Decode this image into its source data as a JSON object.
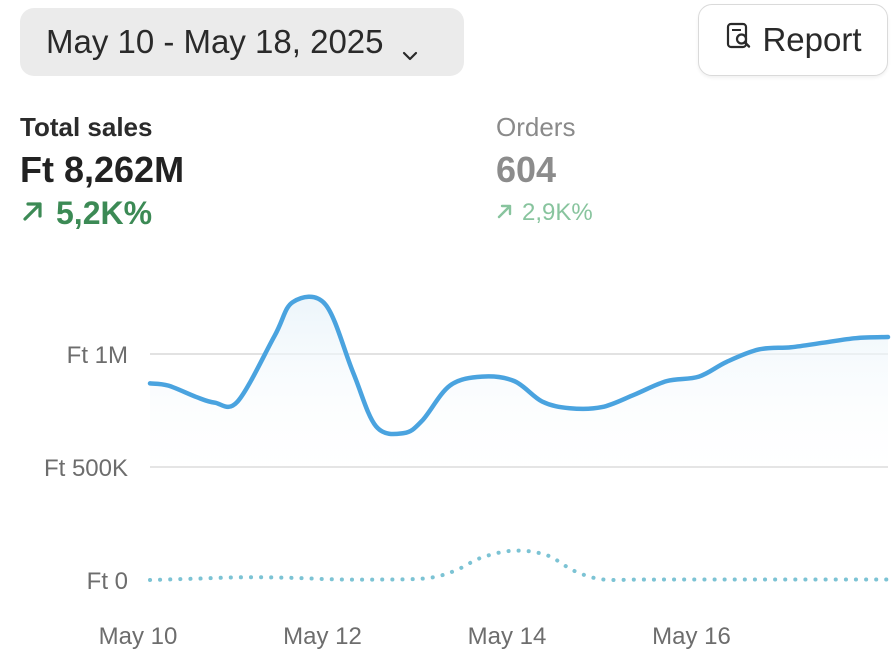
{
  "date_range": {
    "label": "May 10 - May 18, 2025",
    "icon": "chevron-down-icon"
  },
  "report_button": {
    "label": "Report",
    "icon": "report-search-icon"
  },
  "metrics": {
    "total_sales": {
      "label": "Total sales",
      "value": "Ft 8,262M",
      "change": "5,2K%",
      "change_color": "#3c8a55"
    },
    "orders": {
      "label": "Orders",
      "value": "604",
      "change": "2,9K%",
      "change_color": "#88c49e"
    }
  },
  "chart_data": {
    "type": "line",
    "y_tick_labels": [
      "Ft 0",
      "Ft 500K",
      "Ft 1M"
    ],
    "y_ticks": [
      0,
      500000,
      1000000
    ],
    "x_tick_labels": [
      "May 10",
      "May 12",
      "May 14",
      "May 16"
    ],
    "x_ticks": [
      0,
      2,
      4,
      6
    ],
    "xlim": [
      0,
      8
    ],
    "ylim": [
      0,
      1000000
    ],
    "grid": true,
    "colors": {
      "main": "#4aa3df",
      "comparison": "#7cc3d4",
      "fill": "#eaf4fa",
      "grid": "#e2e2e2"
    },
    "series": [
      {
        "style": "solid",
        "x": [
          0,
          0.2,
          0.5,
          0.7,
          0.95,
          1.35,
          1.55,
          1.9,
          2.2,
          2.45,
          2.75,
          2.95,
          3.25,
          3.6,
          3.95,
          4.25,
          4.55,
          4.9,
          5.25,
          5.6,
          5.95,
          6.25,
          6.6,
          6.95,
          7.3,
          7.65,
          8.0
        ],
        "y": [
          870000,
          860000,
          810000,
          785000,
          790000,
          1080000,
          1230000,
          1220000,
          920000,
          680000,
          650000,
          705000,
          860000,
          900000,
          880000,
          790000,
          760000,
          765000,
          820000,
          880000,
          900000,
          965000,
          1020000,
          1030000,
          1050000,
          1070000,
          1075000
        ]
      },
      {
        "style": "dotted",
        "x": [
          0,
          0.5,
          1.0,
          1.5,
          2.0,
          2.5,
          3.0,
          3.3,
          3.6,
          3.95,
          4.3,
          4.6,
          4.9,
          5.3,
          5.7,
          6.2,
          6.7,
          7.2,
          7.7,
          8.0
        ],
        "y": [
          0,
          6000,
          12000,
          10000,
          3000,
          2000,
          8000,
          40000,
          100000,
          130000,
          110000,
          40000,
          3000,
          2000,
          2000,
          2000,
          2000,
          2000,
          2000,
          2000
        ]
      }
    ]
  }
}
